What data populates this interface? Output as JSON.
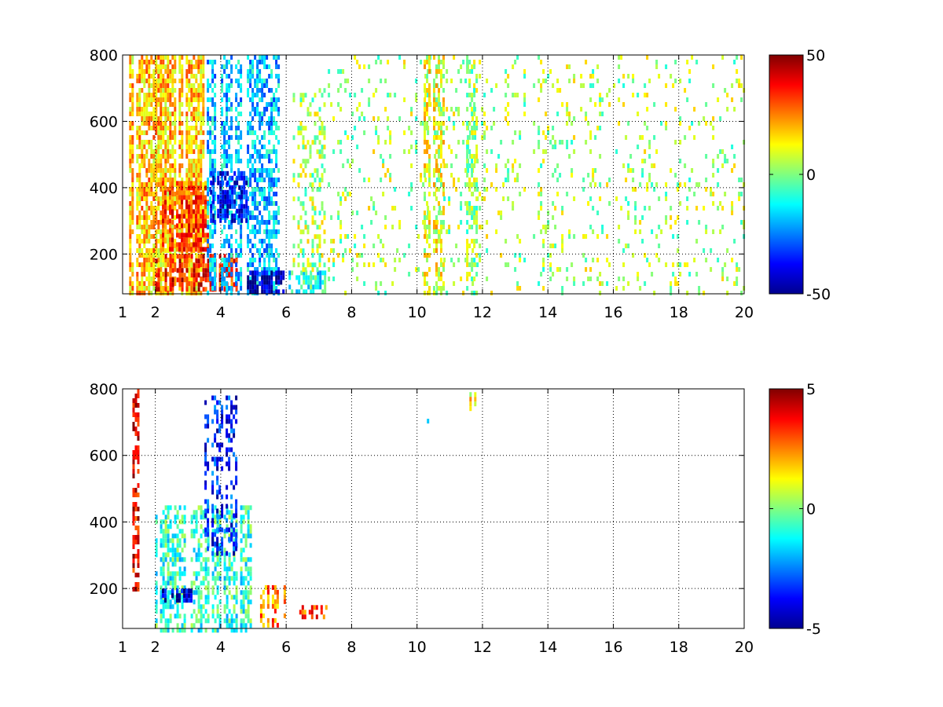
{
  "chart_data": [
    {
      "type": "heatmap",
      "title": "",
      "xlabel": "",
      "ylabel": "",
      "xlim": [
        1,
        20
      ],
      "ylim": [
        80,
        800
      ],
      "x_ticks": [
        "1",
        "2",
        "4",
        "6",
        "8",
        "10",
        "12",
        "14",
        "16",
        "18",
        "20"
      ],
      "x_tick_values": [
        1,
        2,
        4,
        6,
        8,
        10,
        12,
        14,
        16,
        18,
        20
      ],
      "y_ticks": [
        "200",
        "400",
        "600",
        "800"
      ],
      "y_tick_values": [
        200,
        400,
        600,
        800
      ],
      "grid": true,
      "colormap": "jet",
      "colorbar": {
        "min": -50,
        "max": 50,
        "ticks": [
          "-50",
          "0",
          "50"
        ],
        "tick_values": [
          -50,
          0,
          50
        ]
      },
      "regions": [
        {
          "x": [
            1.2,
            3.5
          ],
          "y": [
            80,
            800
          ],
          "value": 18,
          "density": 0.75
        },
        {
          "x": [
            2.2,
            3.6
          ],
          "y": [
            220,
            420
          ],
          "value": 30,
          "density": 0.8
        },
        {
          "x": [
            2.0,
            4.5
          ],
          "y": [
            90,
            200
          ],
          "value": 35,
          "density": 0.7
        },
        {
          "x": [
            3.5,
            5.8
          ],
          "y": [
            80,
            800
          ],
          "value": -18,
          "density": 0.55
        },
        {
          "x": [
            3.6,
            4.8
          ],
          "y": [
            300,
            450
          ],
          "value": -35,
          "density": 0.7
        },
        {
          "x": [
            4.8,
            5.9
          ],
          "y": [
            80,
            150
          ],
          "value": -45,
          "density": 0.8
        },
        {
          "x": [
            6.0,
            7.2
          ],
          "y": [
            80,
            150
          ],
          "value": -10,
          "density": 0.6
        },
        {
          "x": [
            6.2,
            7.2
          ],
          "y": [
            150,
            700
          ],
          "value": 4,
          "density": 0.35
        },
        {
          "x": [
            7.2,
            20.0
          ],
          "y": [
            80,
            800
          ],
          "value": 4,
          "density": 0.12
        },
        {
          "x": [
            10.2,
            10.8
          ],
          "y": [
            80,
            800
          ],
          "value": 10,
          "density": 0.55
        },
        {
          "x": [
            11.5,
            11.8
          ],
          "y": [
            80,
            800
          ],
          "value": 2,
          "density": 0.5
        }
      ]
    },
    {
      "type": "heatmap",
      "title": "",
      "xlabel": "",
      "ylabel": "",
      "xlim": [
        1,
        20
      ],
      "ylim": [
        80,
        800
      ],
      "x_ticks": [
        "1",
        "2",
        "4",
        "6",
        "8",
        "10",
        "12",
        "14",
        "16",
        "18",
        "20"
      ],
      "x_tick_values": [
        1,
        2,
        4,
        6,
        8,
        10,
        12,
        14,
        16,
        18,
        20
      ],
      "y_ticks": [
        "200",
        "400",
        "600",
        "800"
      ],
      "y_tick_values": [
        200,
        400,
        600,
        800
      ],
      "grid": true,
      "colormap": "jet",
      "colorbar": {
        "min": -5,
        "max": 5,
        "ticks": [
          "-5",
          "0",
          "5"
        ],
        "tick_values": [
          -5,
          0,
          5
        ]
      },
      "regions": [
        {
          "x": [
            1.3,
            1.5
          ],
          "y": [
            200,
            800
          ],
          "value": 4,
          "density": 0.5
        },
        {
          "x": [
            2.0,
            5.0
          ],
          "y": [
            80,
            450
          ],
          "value": -0.8,
          "density": 0.55
        },
        {
          "x": [
            3.5,
            4.5
          ],
          "y": [
            300,
            780
          ],
          "value": -3.5,
          "density": 0.4
        },
        {
          "x": [
            2.2,
            3.2
          ],
          "y": [
            170,
            200
          ],
          "value": -4.5,
          "density": 0.8
        },
        {
          "x": [
            5.2,
            6.0
          ],
          "y": [
            90,
            210
          ],
          "value": 2.5,
          "density": 0.6
        },
        {
          "x": [
            6.4,
            7.2
          ],
          "y": [
            110,
            150
          ],
          "value": 3.0,
          "density": 0.6
        },
        {
          "x": [
            11.6,
            11.8
          ],
          "y": [
            740,
            790
          ],
          "value": 1.5,
          "density": 0.9
        },
        {
          "x": [
            10.3,
            10.4
          ],
          "y": [
            690,
            710
          ],
          "value": -0.5,
          "density": 0.9
        }
      ]
    }
  ]
}
